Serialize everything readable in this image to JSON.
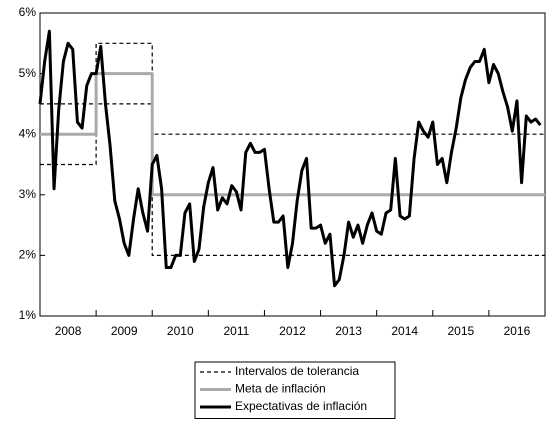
{
  "chart_data": {
    "type": "line",
    "xlim": [
      2008,
      2017
    ],
    "xticks": [
      {
        "value": 2008,
        "label": "2008"
      },
      {
        "value": 2009,
        "label": "2009"
      },
      {
        "value": 2010,
        "label": "2010"
      },
      {
        "value": 2011,
        "label": "2011"
      },
      {
        "value": 2012,
        "label": "2012"
      },
      {
        "value": 2013,
        "label": "2013"
      },
      {
        "value": 2014,
        "label": "2014"
      },
      {
        "value": 2015,
        "label": "2015"
      },
      {
        "value": 2016,
        "label": "2016"
      }
    ],
    "ylim": [
      1,
      6
    ],
    "yticks": [
      {
        "value": 1,
        "label": "1%"
      },
      {
        "value": 2,
        "label": "2%"
      },
      {
        "value": 3,
        "label": "3%"
      },
      {
        "value": 4,
        "label": "4%"
      },
      {
        "value": 5,
        "label": "5%"
      },
      {
        "value": 6,
        "label": "6%"
      }
    ],
    "legend": "bottom",
    "series": [
      {
        "name": "Intervalos de tolerancia",
        "color": "#000000",
        "style": "dashed",
        "x": [
          2008,
          2009,
          2009,
          2010,
          2010,
          2017
        ],
        "values": [
          4.5,
          4.5,
          5.5,
          5.5,
          4,
          4
        ],
        "lower": [
          3.5,
          3.5,
          4.5,
          4.5,
          2,
          2
        ]
      },
      {
        "name": "Meta de inflación",
        "color": "#aaaaaa",
        "style": "solid",
        "x": [
          2008,
          2009,
          2009,
          2010,
          2010,
          2017
        ],
        "values": [
          4,
          4,
          5,
          5,
          3,
          3
        ]
      },
      {
        "name": "Expectativas de inflación",
        "color": "#000000",
        "style": "solid",
        "x": [
          2008,
          2008.083,
          2008.167,
          2008.25,
          2008.333,
          2008.417,
          2008.5,
          2008.583,
          2008.667,
          2008.75,
          2008.833,
          2008.917,
          2009,
          2009.083,
          2009.167,
          2009.25,
          2009.333,
          2009.417,
          2009.5,
          2009.583,
          2009.667,
          2009.75,
          2009.833,
          2009.917,
          2010,
          2010.083,
          2010.167,
          2010.25,
          2010.333,
          2010.417,
          2010.5,
          2010.583,
          2010.667,
          2010.75,
          2010.833,
          2010.917,
          2011,
          2011.083,
          2011.167,
          2011.25,
          2011.333,
          2011.417,
          2011.5,
          2011.583,
          2011.667,
          2011.75,
          2011.833,
          2011.917,
          2012,
          2012.083,
          2012.167,
          2012.25,
          2012.333,
          2012.417,
          2012.5,
          2012.583,
          2012.667,
          2012.75,
          2012.833,
          2012.917,
          2013,
          2013.083,
          2013.167,
          2013.25,
          2013.333,
          2013.417,
          2013.5,
          2013.583,
          2013.667,
          2013.75,
          2013.833,
          2013.917,
          2014,
          2014.083,
          2014.167,
          2014.25,
          2014.333,
          2014.417,
          2014.5,
          2014.583,
          2014.667,
          2014.75,
          2014.833,
          2014.917,
          2015,
          2015.083,
          2015.167,
          2015.25,
          2015.333,
          2015.417,
          2015.5,
          2015.583,
          2015.667,
          2015.75,
          2015.833,
          2015.917,
          2016,
          2016.083,
          2016.167,
          2016.25,
          2016.333,
          2016.417,
          2016.5,
          2016.583,
          2016.667,
          2016.75,
          2016.833,
          2016.917
        ],
        "values": [
          4.5,
          5.2,
          5.7,
          3.1,
          4.4,
          5.2,
          5.5,
          5.4,
          4.2,
          4.1,
          4.8,
          5.0,
          5.0,
          5.45,
          4.5,
          3.8,
          2.9,
          2.6,
          2.2,
          2.0,
          2.6,
          3.1,
          2.7,
          2.4,
          3.5,
          3.65,
          3.1,
          1.8,
          1.8,
          2.0,
          2.0,
          2.7,
          2.85,
          1.9,
          2.1,
          2.8,
          3.2,
          3.45,
          2.75,
          2.95,
          2.85,
          3.15,
          3.05,
          2.75,
          3.7,
          3.85,
          3.7,
          3.7,
          3.75,
          3.1,
          2.55,
          2.55,
          2.65,
          1.8,
          2.2,
          2.9,
          3.4,
          3.6,
          2.45,
          2.45,
          2.5,
          2.2,
          2.35,
          1.5,
          1.6,
          2.0,
          2.55,
          2.3,
          2.5,
          2.2,
          2.5,
          2.7,
          2.4,
          2.35,
          2.7,
          2.75,
          3.6,
          2.65,
          2.6,
          2.65,
          3.6,
          4.2,
          4.05,
          3.95,
          4.2,
          3.5,
          3.6,
          3.2,
          3.7,
          4.1,
          4.6,
          4.9,
          5.1,
          5.2,
          5.2,
          5.4,
          4.85,
          5.15,
          5.0,
          4.7,
          4.45,
          4.05,
          4.55,
          3.2,
          4.3,
          4.2,
          4.25,
          4.15
        ]
      }
    ]
  }
}
